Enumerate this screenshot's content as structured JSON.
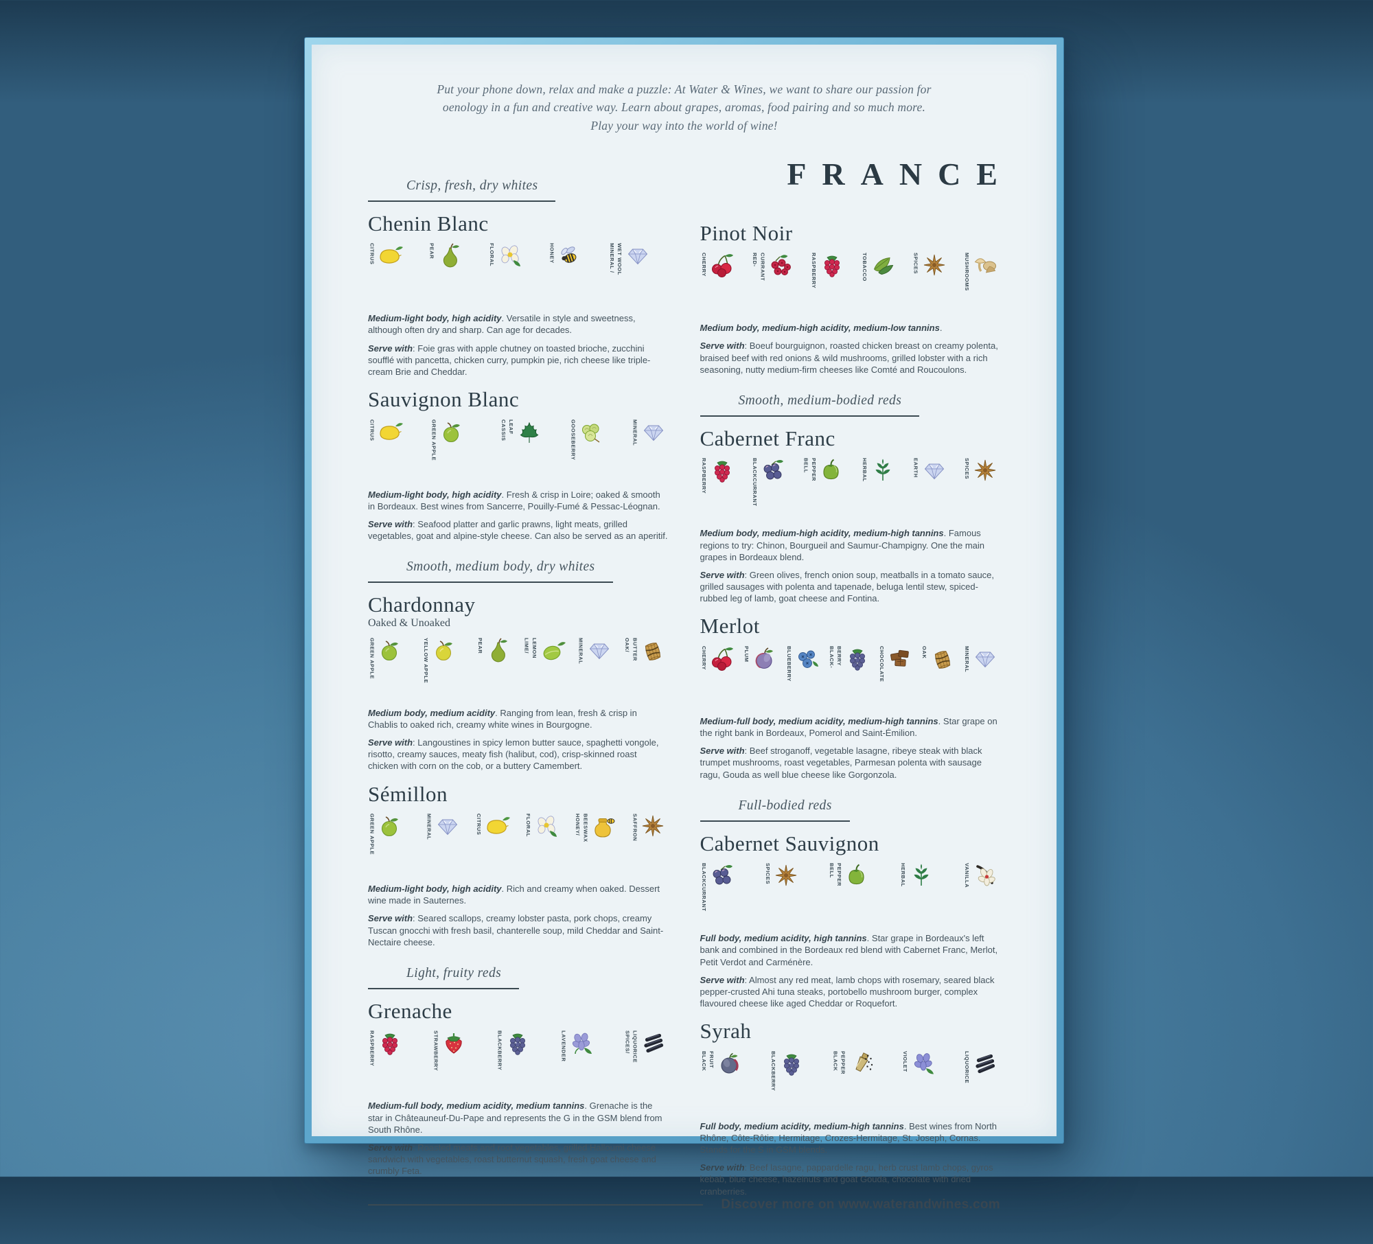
{
  "colors": {
    "backdrop_blue": "#4a80a1",
    "frame_blue": "#62abd0",
    "poster_bg": "#edf3f6",
    "ink": "#2d3d47",
    "rule": "#3b4a52"
  },
  "poster": {
    "intro": "Put your phone down, relax and make a puzzle: At Water & Wines, we want to share our passion for\noenology in a fun and creative way. Learn about grapes, aromas, food pairing and so much more.\nPlay your way into the world of wine!",
    "country": "FRANCE",
    "footer": "Discover more on www.waterandwines.com",
    "columns": {
      "left": [
        {
          "type": "category",
          "label": "Crisp, fresh, dry whites"
        },
        {
          "type": "wine",
          "name": "Chenin Blanc",
          "aromas": [
            {
              "label": "CITRUS",
              "icon": "lemon"
            },
            {
              "label": "PEAR",
              "icon": "pear"
            },
            {
              "label": "FLORAL",
              "icon": "flower"
            },
            {
              "label": "HONEY",
              "icon": "bee"
            },
            {
              "label": "MINERAL /\nWET WOOL",
              "icon": "diamond"
            }
          ],
          "profile_lead": "Medium-light body, high acidity",
          "profile_rest": ". Versatile in style and sweetness, although often dry and sharp. Can age for decades.",
          "serve_lead": "Serve with",
          "serve_rest": ": Foie gras with apple chutney on toasted brioche, zucchini soufflé with pancetta, chicken curry, pumpkin pie, rich cheese like triple-cream Brie and Cheddar."
        },
        {
          "type": "wine",
          "name": "Sauvignon Blanc",
          "aromas": [
            {
              "label": "CITRUS",
              "icon": "lemon"
            },
            {
              "label": "GREEN APPLE",
              "icon": "greenapple"
            },
            {
              "label": "CASSIS\nLEAF",
              "icon": "cassisleaf"
            },
            {
              "label": "GOOSEBERRY",
              "icon": "gooseberry"
            },
            {
              "label": "MINERAL",
              "icon": "diamond"
            }
          ],
          "profile_lead": "Medium-light body, high acidity",
          "profile_rest": ". Fresh & crisp in Loire; oaked & smooth in Bordeaux. Best wines from Sancerre, Pouilly-Fumé & Pessac-Léognan.",
          "serve_lead": "Serve with",
          "serve_rest": ": Seafood platter and garlic prawns, light meats, grilled vegetables, goat and alpine-style cheese. Can also be served as an aperitif."
        },
        {
          "type": "category",
          "label": "Smooth, medium body, dry whites"
        },
        {
          "type": "wine",
          "name": "Chardonnay",
          "subtitle": "Oaked & Unoaked",
          "aromas": [
            {
              "label": "GREEN APPLE",
              "icon": "greenapple"
            },
            {
              "label": "YELLOW APPLE",
              "icon": "yellowapple"
            },
            {
              "label": "PEAR",
              "icon": "pear"
            },
            {
              "label": "LIME/\nLEMON",
              "icon": "lime"
            },
            {
              "label": "MINERAL",
              "icon": "diamond"
            },
            {
              "label": "OAK/\nBUTTER",
              "icon": "barrel"
            }
          ],
          "profile_lead": "Medium body, medium acidity",
          "profile_rest": ". Ranging from lean, fresh & crisp in Chablis to oaked rich, creamy white wines in Bourgogne.",
          "serve_lead": "Serve with",
          "serve_rest": ": Langoustines in spicy lemon butter sauce, spaghetti vongole, risotto, creamy sauces, meaty fish (halibut, cod), crisp-skinned roast chicken with corn on the cob, or a buttery Camembert."
        },
        {
          "type": "wine",
          "name": "Sémillon",
          "aromas": [
            {
              "label": "GREEN APPLE",
              "icon": "greenapple"
            },
            {
              "label": "MINERAL",
              "icon": "diamond"
            },
            {
              "label": "CITRUS",
              "icon": "lemon"
            },
            {
              "label": "FLORAL",
              "icon": "flower"
            },
            {
              "label": "HONEY/\nBEESWAX",
              "icon": "honeypot"
            },
            {
              "label": "SAFFRON",
              "icon": "star"
            }
          ],
          "profile_lead": "Medium-light body, high acidity",
          "profile_rest": ". Rich and creamy when oaked. Dessert wine made in Sauternes.",
          "serve_lead": "Serve with",
          "serve_rest": ": Seared scallops, creamy lobster pasta, pork chops, creamy Tuscan gnocchi with fresh basil, chanterelle soup, mild Cheddar and Saint-Nectaire cheese."
        },
        {
          "type": "category",
          "label": "Light, fruity reds"
        },
        {
          "type": "wine",
          "name": "Grenache",
          "aromas": [
            {
              "label": "RASPBERRY",
              "icon": "raspberry"
            },
            {
              "label": "STRAWBERRY",
              "icon": "strawberry"
            },
            {
              "label": "BLACKBERRY",
              "icon": "blackberry"
            },
            {
              "label": "LAVENDER",
              "icon": "lavender"
            },
            {
              "label": "SPICES/\nLIQUORICE",
              "icon": "liquorice"
            }
          ],
          "profile_lead": "Medium-full body, medium acidity, medium tannins",
          "profile_rest": ". Grenache is the star in Châteauneuf-Du-Pape and represents the G in the GSM blend from South Rhône.",
          "serve_lead": "Serve with",
          "serve_rest": ": Roasted meats and root vegetables, grilled Halloumi cheese sandwich with vegetables, roast butternut squash, fresh goat cheese and crumbly Feta."
        }
      ],
      "right": [
        {
          "type": "wine",
          "name": "Pinot Noir",
          "aromas": [
            {
              "label": "CHERRY",
              "icon": "cherry"
            },
            {
              "label": "RED-\nCURRANT",
              "icon": "redcurrant"
            },
            {
              "label": "RASPBERRY",
              "icon": "raspberry"
            },
            {
              "label": "TOBACCO",
              "icon": "tobacco"
            },
            {
              "label": "SPICES",
              "icon": "star"
            },
            {
              "label": "MUSHROOMS",
              "icon": "mushroom"
            }
          ],
          "profile_lead": "Medium body, medium-high acidity, medium-low tannins",
          "profile_rest": ".",
          "serve_lead": "Serve with",
          "serve_rest": ": Boeuf bourguignon, roasted chicken breast on creamy polenta, braised beef with red onions & wild mushrooms, grilled lobster with a rich seasoning, nutty medium-firm cheeses like Comté and Roucoulons."
        },
        {
          "type": "category",
          "label": "Smooth, medium-bodied reds"
        },
        {
          "type": "wine",
          "name": "Cabernet Franc",
          "aromas": [
            {
              "label": "RASPBERRY",
              "icon": "raspberry"
            },
            {
              "label": "BLACKCURRANT",
              "icon": "blackcurrant"
            },
            {
              "label": "BELL\nPEPPER",
              "icon": "bellpepper"
            },
            {
              "label": "HERBAL",
              "icon": "herbal"
            },
            {
              "label": "EARTH",
              "icon": "diamond"
            },
            {
              "label": "SPICES",
              "icon": "star"
            }
          ],
          "profile_lead": "Medium body, medium-high acidity, medium-high tannins",
          "profile_rest": ". Famous regions to try: Chinon, Bourgueil and Saumur-Champigny. One the main grapes in Bordeaux blend.",
          "serve_lead": "Serve with",
          "serve_rest": ": Green olives, french onion soup, meatballs in a tomato sauce, grilled sausages with polenta and tapenade, beluga lentil stew, spiced-rubbed leg of lamb, goat cheese and Fontina."
        },
        {
          "type": "wine",
          "name": "Merlot",
          "aromas": [
            {
              "label": "CHERRY",
              "icon": "cherry"
            },
            {
              "label": "PLUM",
              "icon": "plum"
            },
            {
              "label": "BLUEBERRY",
              "icon": "blueberry"
            },
            {
              "label": "BLACK-\nBERRY",
              "icon": "blackberry"
            },
            {
              "label": "CHOCOLATE",
              "icon": "chocolate"
            },
            {
              "label": "OAK",
              "icon": "barrel"
            },
            {
              "label": "MINERAL",
              "icon": "diamond"
            }
          ],
          "profile_lead": "Medium-full body, medium acidity, medium-high tannins",
          "profile_rest": ". Star grape on the right bank in Bordeaux, Pomerol and Saint-Émilion.",
          "serve_lead": "Serve with",
          "serve_rest": ": Beef stroganoff, vegetable lasagne, ribeye steak with black trumpet mushrooms, roast vegetables, Parmesan polenta with sausage ragu, Gouda as well blue cheese like Gorgonzola."
        },
        {
          "type": "category",
          "label": "Full-bodied reds"
        },
        {
          "type": "wine",
          "name": "Cabernet Sauvignon",
          "aromas": [
            {
              "label": "BLACKCURRANT",
              "icon": "blackcurrant"
            },
            {
              "label": "SPICES",
              "icon": "star"
            },
            {
              "label": "BELL\nPEPPER",
              "icon": "bellpepper"
            },
            {
              "label": "HERBAL",
              "icon": "herbal"
            },
            {
              "label": "VANILLA",
              "icon": "vanilla"
            }
          ],
          "profile_lead": "Full body, medium acidity, high tannins",
          "profile_rest": ". Star grape in Bordeaux's left bank and combined in the Bordeaux red blend with Cabernet Franc, Merlot, Petit Verdot and Carménère.",
          "serve_lead": "Serve with",
          "serve_rest": ": Almost any red meat, lamb chops with rosemary, seared black pepper-crusted Ahi tuna steaks, portobello mushroom burger, complex flavoured cheese like aged Cheddar or Roquefort."
        },
        {
          "type": "wine",
          "name": "Syrah",
          "aromas": [
            {
              "label": "BLACK\nFRUIT",
              "icon": "blackfruit"
            },
            {
              "label": "BLACKBERRY",
              "icon": "blackberry"
            },
            {
              "label": "BLACK\nPEPPER",
              "icon": "grinder"
            },
            {
              "label": "VIOLET",
              "icon": "violet"
            },
            {
              "label": "LIQUORICE",
              "icon": "liquorice"
            }
          ],
          "profile_lead": "Full body, medium acidity, medium-high tannins",
          "profile_rest": ". Best wines from North Rhône, Côte-Rôtie, Hermitage, Crozes-Hermitage, St. Joseph, Cornas. Stands for the S in GSM blends.",
          "serve_lead": "Serve with",
          "serve_rest": ": Beef lasagne, pappardelle ragu, herb crust lamb chops, gyros kebab, blue cheese, hazelnuts and goat Gouda, chocolate with dried cranberries."
        }
      ]
    }
  }
}
